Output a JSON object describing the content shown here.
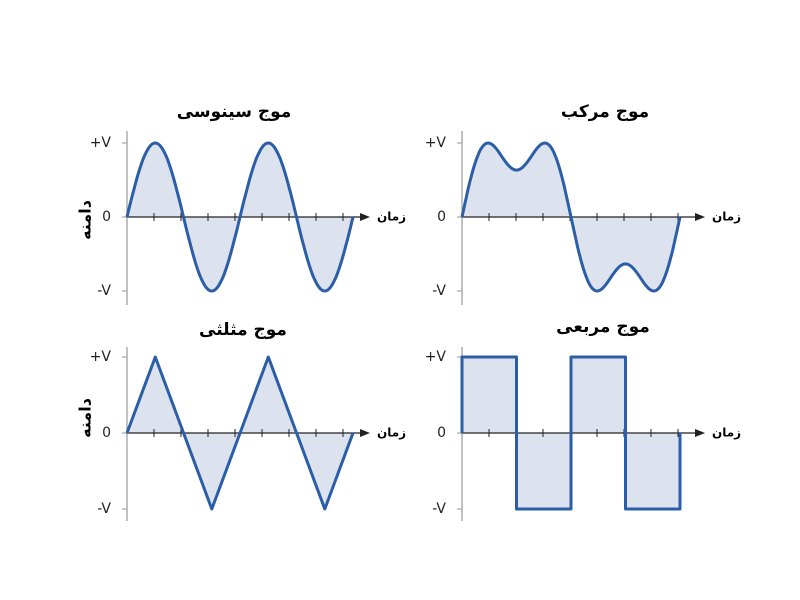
{
  "y_label": "دامنه",
  "panels": [
    {
      "title": "موج سینوسی",
      "y_ticks": [
        "+V",
        "0",
        "-V"
      ],
      "x_label": "زمان"
    },
    {
      "title": "موج مرکب",
      "y_ticks": [
        "+V",
        "0",
        "-V"
      ],
      "x_label": "زمان"
    },
    {
      "title": "موج مثلثی",
      "y_ticks": [
        "+V",
        "0",
        "-V"
      ],
      "x_label": "زمان"
    },
    {
      "title": "موج مربعی",
      "y_ticks": [
        "+V",
        "0",
        "-V"
      ],
      "x_label": "زمان"
    }
  ]
}
